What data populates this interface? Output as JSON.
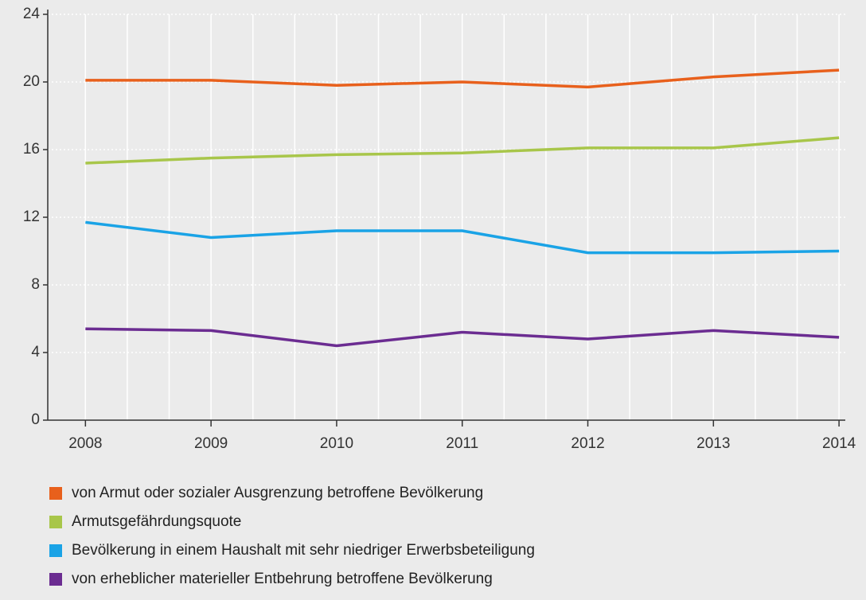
{
  "chart_data": {
    "type": "line",
    "x": [
      2008,
      2009,
      2010,
      2011,
      2012,
      2013,
      2014
    ],
    "xlim": [
      2007.7,
      2014.05
    ],
    "xticks": [
      2008,
      2009,
      2010,
      2011,
      2012,
      2013,
      2014
    ],
    "ylim": [
      0,
      24
    ],
    "yticks": [
      0,
      4,
      8,
      12,
      16,
      20,
      24
    ],
    "grid": true,
    "legend": "bottom",
    "series": [
      {
        "name": "von Armut oder sozialer Ausgrenzung betroffene Bevölkerung",
        "color": "#e8601c",
        "values": [
          20.1,
          20.1,
          19.8,
          20.0,
          19.7,
          20.3,
          20.7
        ]
      },
      {
        "name": "Armutsgefährdungsquote",
        "color": "#a8c64a",
        "values": [
          15.2,
          15.5,
          15.7,
          15.8,
          16.1,
          16.1,
          16.7
        ]
      },
      {
        "name": "Bevölkerung in einem Haushalt mit sehr niedriger Erwerbsbeteiligung",
        "color": "#1aa3e6",
        "values": [
          11.7,
          10.8,
          11.2,
          11.2,
          9.9,
          9.9,
          10.0
        ]
      },
      {
        "name": "von erheblicher materieller Entbehrung betroffene Bevölkerung",
        "color": "#6b2c91",
        "values": [
          5.4,
          5.3,
          4.4,
          5.2,
          4.8,
          5.3,
          4.9
        ]
      }
    ]
  }
}
